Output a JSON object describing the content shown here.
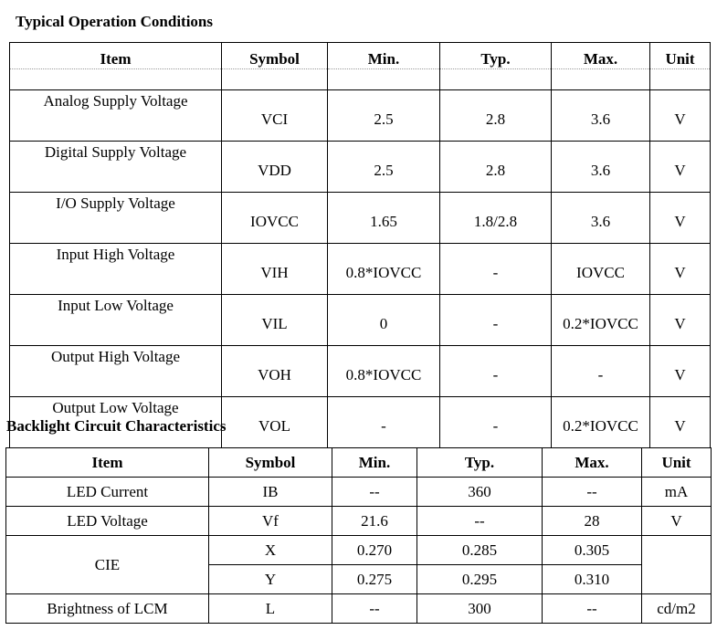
{
  "typical": {
    "title": "Typical Operation Conditions",
    "header": [
      "Item",
      "Symbol",
      "Min.",
      "Typ.",
      "Max.",
      "Unit"
    ],
    "rows": [
      [
        "Analog Supply Voltage",
        "VCI",
        "2.5",
        "2.8",
        "3.6",
        "V"
      ],
      [
        "Digital Supply Voltage",
        "VDD",
        "2.5",
        "2.8",
        "3.6",
        "V"
      ],
      [
        "I/O Supply Voltage",
        "IOVCC",
        "1.65",
        "1.8/2.8",
        "3.6",
        "V"
      ],
      [
        "Input High Voltage",
        "VIH",
        "0.8*IOVCC",
        "-",
        "IOVCC",
        "V"
      ],
      [
        "Input Low Voltage",
        "VIL",
        "0",
        "-",
        "0.2*IOVCC",
        "V"
      ],
      [
        "Output High Voltage",
        "VOH",
        "0.8*IOVCC",
        "-",
        "-",
        "V"
      ],
      [
        "Output Low Voltage",
        "VOL",
        "-",
        "-",
        "0.2*IOVCC",
        "V"
      ]
    ]
  },
  "backlight": {
    "title": "Backlight Circuit Characteristics",
    "header": [
      "Item",
      "Symbol",
      "Min.",
      "Typ.",
      "Max.",
      "Unit"
    ],
    "rows": [
      [
        "LED Current",
        "IB",
        "--",
        "360",
        "--",
        "mA"
      ],
      [
        "LED Voltage",
        "Vf",
        "21.6",
        "--",
        "28",
        "V"
      ],
      [
        "CIE",
        "X",
        "0.270",
        "0.285",
        "0.305"
      ],
      [
        "Y",
        "0.275",
        "0.295",
        "0.310"
      ],
      [
        "Brightness of LCM",
        "L",
        "--",
        "300",
        "--",
        "cd/m2"
      ]
    ]
  }
}
